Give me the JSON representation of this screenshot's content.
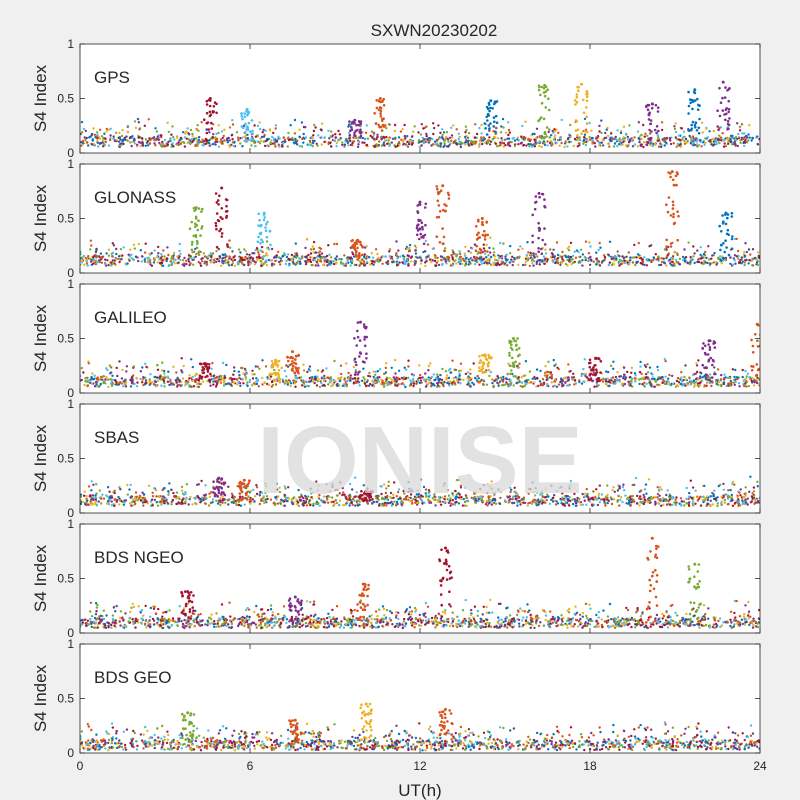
{
  "figure": {
    "title": "SXWN20230202",
    "xlabel": "UT(h)",
    "watermark": "IONISE",
    "background": "#f0f0f0",
    "axes_background": "#ffffff"
  },
  "chart_data": {
    "type": "scatter",
    "xlim": [
      0,
      24
    ],
    "ylim": [
      0,
      1
    ],
    "xticks": [
      0,
      6,
      12,
      18,
      24
    ],
    "yticks": [
      0,
      0.5,
      1
    ],
    "ytick_labels": [
      "0",
      "0.5",
      "1"
    ],
    "xlabel": "UT(h)",
    "ylabel": "S4 Index",
    "grid": false,
    "series_colors": [
      "#0072bd",
      "#d95319",
      "#edb120",
      "#7e2f8e",
      "#77ac30",
      "#4dbeee",
      "#a2142f"
    ],
    "panels": [
      {
        "label": "GPS",
        "baseline": 0.1,
        "spikes": [
          {
            "x": 4.6,
            "y": 0.5,
            "color": "#a2142f"
          },
          {
            "x": 5.9,
            "y": 0.4,
            "color": "#4dbeee"
          },
          {
            "x": 9.7,
            "y": 0.3,
            "color": "#7e2f8e"
          },
          {
            "x": 10.6,
            "y": 0.5,
            "color": "#d95319"
          },
          {
            "x": 14.5,
            "y": 0.48,
            "color": "#0072bd"
          },
          {
            "x": 16.4,
            "y": 0.62,
            "color": "#77ac30"
          },
          {
            "x": 17.7,
            "y": 0.63,
            "color": "#edb120"
          },
          {
            "x": 20.2,
            "y": 0.45,
            "color": "#7e2f8e"
          },
          {
            "x": 21.7,
            "y": 0.58,
            "color": "#0072bd"
          },
          {
            "x": 22.7,
            "y": 0.65,
            "color": "#7e2f8e"
          }
        ]
      },
      {
        "label": "GLONASS",
        "baseline": 0.11,
        "spikes": [
          {
            "x": 4.1,
            "y": 0.6,
            "color": "#77ac30"
          },
          {
            "x": 5.0,
            "y": 0.78,
            "color": "#a2142f"
          },
          {
            "x": 6.5,
            "y": 0.55,
            "color": "#4dbeee"
          },
          {
            "x": 9.8,
            "y": 0.3,
            "color": "#d95319"
          },
          {
            "x": 12.0,
            "y": 0.65,
            "color": "#7e2f8e"
          },
          {
            "x": 12.8,
            "y": 0.8,
            "color": "#d95319"
          },
          {
            "x": 14.2,
            "y": 0.5,
            "color": "#d95319"
          },
          {
            "x": 16.2,
            "y": 0.73,
            "color": "#7e2f8e"
          },
          {
            "x": 20.9,
            "y": 0.93,
            "color": "#d95319"
          },
          {
            "x": 22.8,
            "y": 0.55,
            "color": "#0072bd"
          }
        ]
      },
      {
        "label": "GALILEO",
        "baseline": 0.1,
        "spikes": [
          {
            "x": 4.4,
            "y": 0.27,
            "color": "#a2142f"
          },
          {
            "x": 6.9,
            "y": 0.3,
            "color": "#edb120"
          },
          {
            "x": 7.5,
            "y": 0.38,
            "color": "#d95319"
          },
          {
            "x": 9.9,
            "y": 0.65,
            "color": "#7e2f8e"
          },
          {
            "x": 14.3,
            "y": 0.35,
            "color": "#edb120"
          },
          {
            "x": 15.3,
            "y": 0.5,
            "color": "#77ac30"
          },
          {
            "x": 18.2,
            "y": 0.32,
            "color": "#a2142f"
          },
          {
            "x": 22.2,
            "y": 0.48,
            "color": "#7e2f8e"
          },
          {
            "x": 23.9,
            "y": 0.63,
            "color": "#d95319"
          }
        ]
      },
      {
        "label": "SBAS",
        "baseline": 0.11,
        "spikes": [
          {
            "x": 4.9,
            "y": 0.32,
            "color": "#7e2f8e"
          },
          {
            "x": 5.8,
            "y": 0.3,
            "color": "#d95319"
          },
          {
            "x": 10.1,
            "y": 0.2,
            "color": "#a2142f"
          }
        ]
      },
      {
        "label": "BDS NGEO",
        "baseline": 0.09,
        "spikes": [
          {
            "x": 3.8,
            "y": 0.38,
            "color": "#a2142f"
          },
          {
            "x": 7.6,
            "y": 0.33,
            "color": "#7e2f8e"
          },
          {
            "x": 10.0,
            "y": 0.45,
            "color": "#d95319"
          },
          {
            "x": 12.9,
            "y": 0.78,
            "color": "#a2142f"
          },
          {
            "x": 20.2,
            "y": 0.87,
            "color": "#d95319"
          },
          {
            "x": 21.7,
            "y": 0.63,
            "color": "#77ac30"
          }
        ]
      },
      {
        "label": "BDS GEO",
        "baseline": 0.07,
        "spikes": [
          {
            "x": 3.8,
            "y": 0.37,
            "color": "#77ac30"
          },
          {
            "x": 7.6,
            "y": 0.3,
            "color": "#d95319"
          },
          {
            "x": 10.1,
            "y": 0.45,
            "color": "#edb120"
          },
          {
            "x": 12.9,
            "y": 0.4,
            "color": "#d95319"
          }
        ]
      }
    ]
  }
}
